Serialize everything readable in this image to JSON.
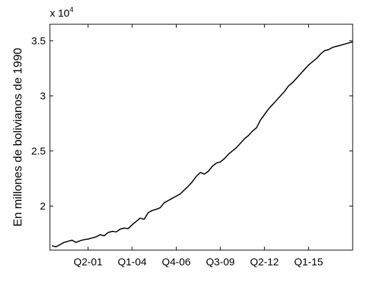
{
  "chart_data": {
    "type": "line",
    "title": "",
    "xlabel": "",
    "ylabel": "En millones de bolivianos de 1990",
    "y_multiplier_label": "x 10",
    "y_multiplier_exponent": "4",
    "ylim": [
      16000,
      36500
    ],
    "yticks": [
      20000,
      25000,
      30000,
      35000
    ],
    "ytick_labels": [
      "2",
      "2.5",
      "3",
      "3.5"
    ],
    "xticks": [
      {
        "label": "Q2-01",
        "index": 9
      },
      {
        "label": "Q1-04",
        "index": 20
      },
      {
        "label": "Q4-06",
        "index": 31
      },
      {
        "label": "Q3-09",
        "index": 42
      },
      {
        "label": "Q2-12",
        "index": 53
      },
      {
        "label": "Q1-15",
        "index": 64
      }
    ],
    "grid": false,
    "series": [
      {
        "name": "",
        "color": "#000000",
        "x_start": "Q1-99",
        "x_end": "Q4-17",
        "values": [
          16400,
          16300,
          16500,
          16700,
          16800,
          16900,
          16700,
          16850,
          16950,
          17000,
          17100,
          17200,
          17400,
          17300,
          17600,
          17700,
          17650,
          17900,
          18000,
          17950,
          18300,
          18600,
          18900,
          18800,
          19400,
          19600,
          19700,
          19850,
          20300,
          20500,
          20700,
          20900,
          21100,
          21450,
          21800,
          22200,
          22700,
          23050,
          22900,
          23150,
          23600,
          23900,
          24000,
          24300,
          24700,
          25000,
          25300,
          25700,
          26100,
          26400,
          26800,
          27100,
          27800,
          28300,
          28800,
          29200,
          29600,
          30000,
          30400,
          30900,
          31200,
          31600,
          32000,
          32400,
          32800,
          33100,
          33400,
          33800,
          34100,
          34200,
          34400,
          34500,
          34600,
          34700,
          34800,
          34900
        ]
      }
    ]
  }
}
